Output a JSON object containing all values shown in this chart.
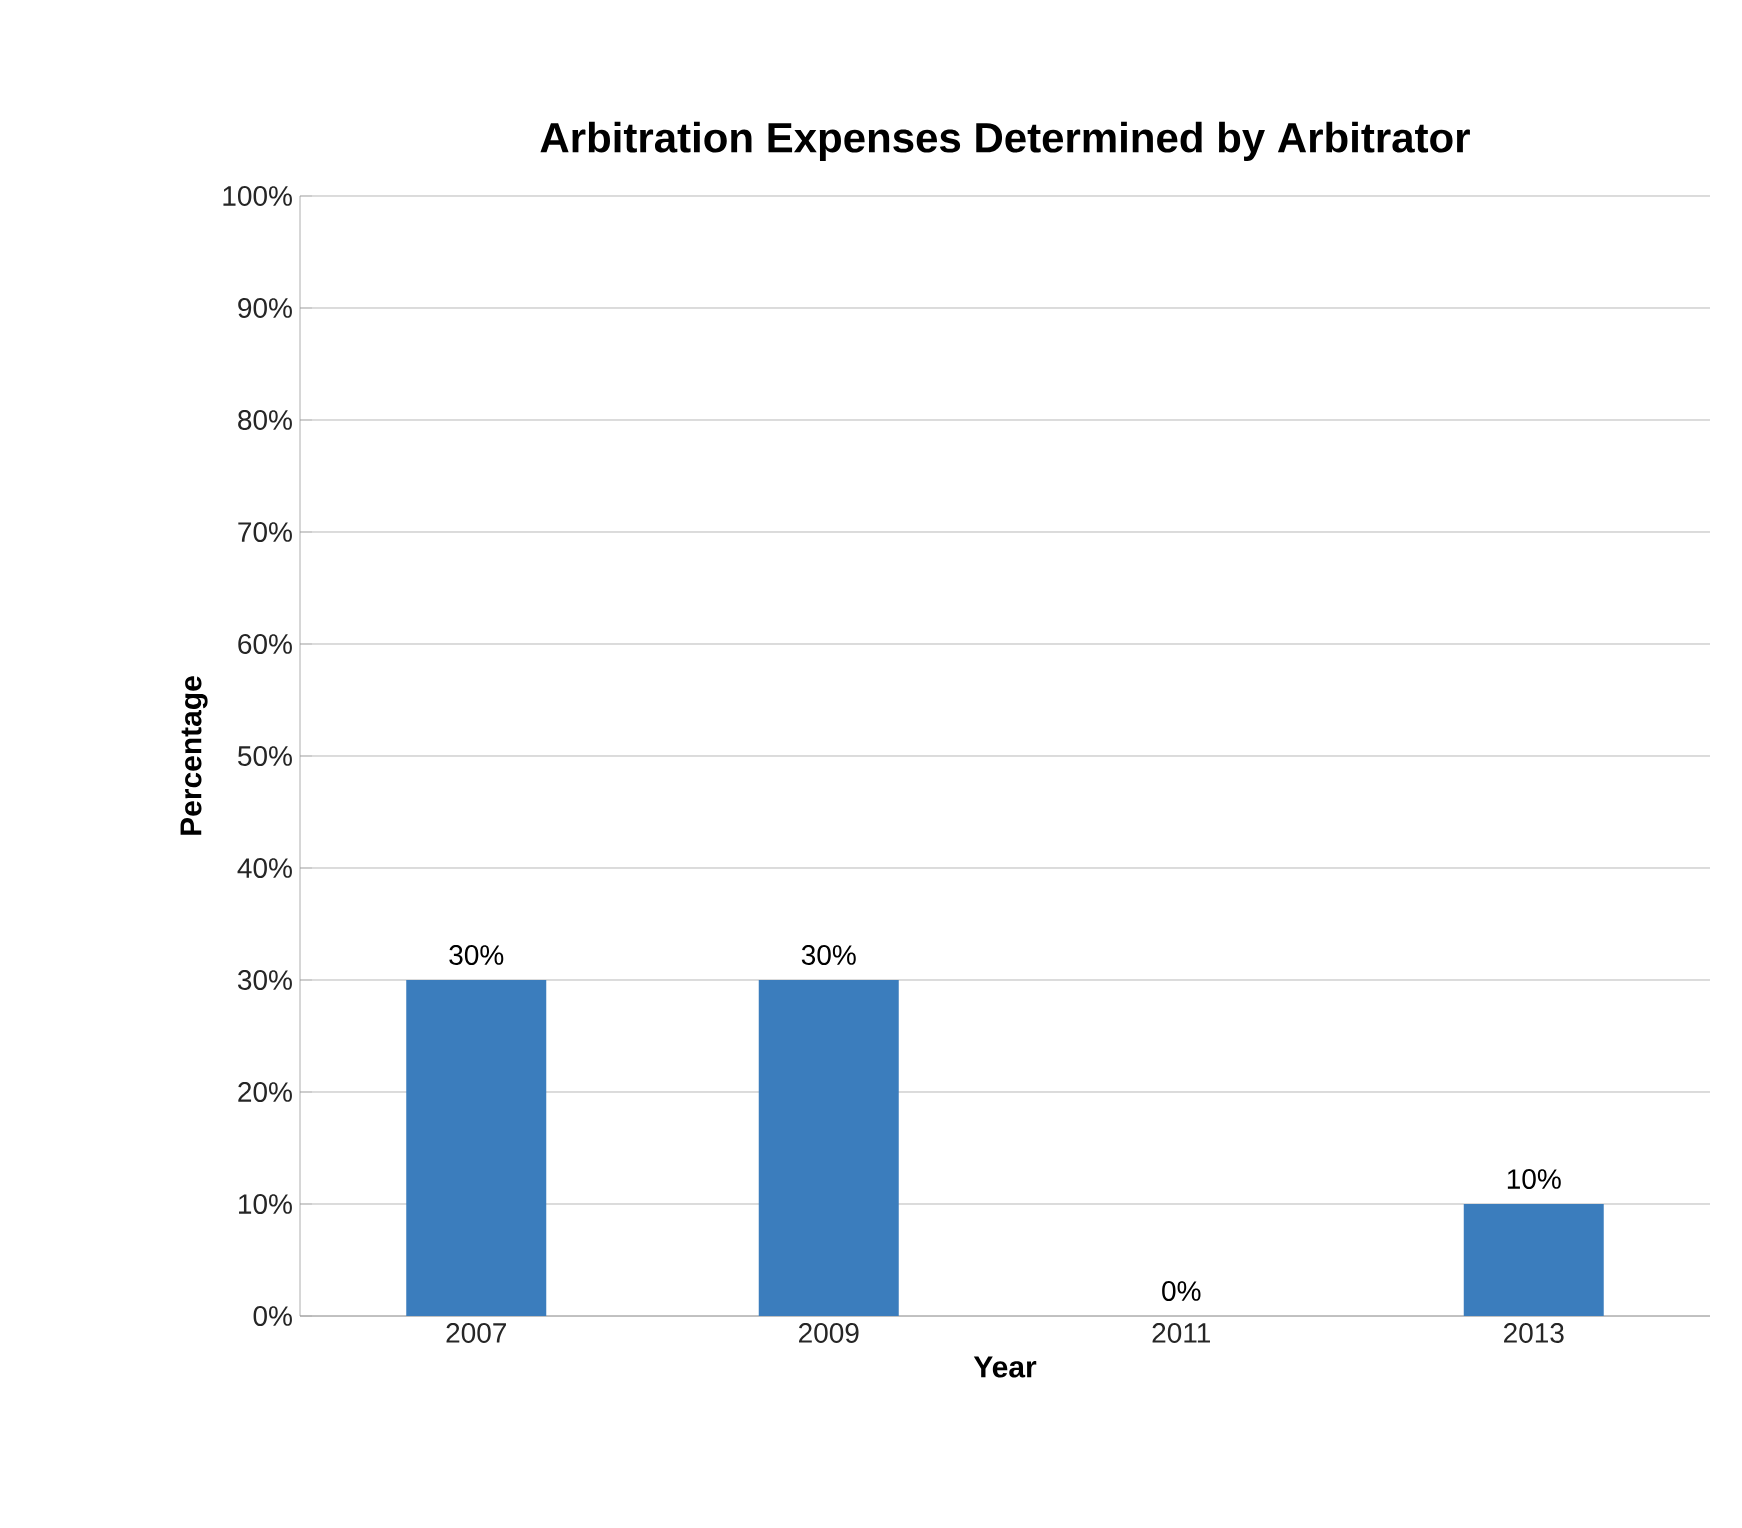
{
  "chart_data": {
    "type": "bar",
    "title": "Arbitration Expenses Determined by Arbitrator",
    "xlabel": "Year",
    "ylabel": "Percentage",
    "categories": [
      "2007",
      "2009",
      "2011",
      "2013"
    ],
    "values": [
      30,
      30,
      0,
      10
    ],
    "value_labels": [
      "30%",
      "30%",
      "0%",
      "10%"
    ],
    "color": "#3b7dbd",
    "ylim": [
      0,
      100
    ],
    "yticks": [
      {
        "value": 0,
        "label": "0%"
      },
      {
        "value": 10,
        "label": "10%"
      },
      {
        "value": 20,
        "label": "20%"
      },
      {
        "value": 30,
        "label": "30%"
      },
      {
        "value": 40,
        "label": "40%"
      },
      {
        "value": 50,
        "label": "50%"
      },
      {
        "value": 60,
        "label": "60%"
      },
      {
        "value": 70,
        "label": "70%"
      },
      {
        "value": 80,
        "label": "80%"
      },
      {
        "value": 90,
        "label": "90%"
      },
      {
        "value": 100,
        "label": "100%"
      }
    ],
    "grid": "y"
  }
}
